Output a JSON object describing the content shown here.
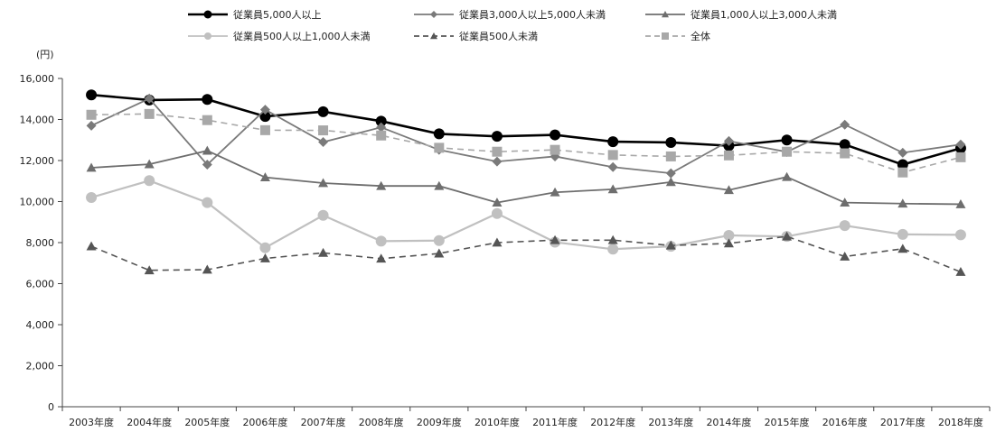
{
  "chart_data": {
    "type": "line",
    "unit_label": "(円)",
    "categories": [
      "2003年度",
      "2004年度",
      "2005年度",
      "2006年度",
      "2007年度",
      "2008年度",
      "2009年度",
      "2010年度",
      "2011年度",
      "2012年度",
      "2013年度",
      "2014年度",
      "2015年度",
      "2016年度",
      "2017年度",
      "2018年度"
    ],
    "ylim": [
      0,
      16000
    ],
    "yticks": [
      "0",
      "2,000",
      "4,000",
      "6,000",
      "8,000",
      "10,000",
      "12,000",
      "14,000",
      "16,000"
    ],
    "ytick_values": [
      0,
      2000,
      4000,
      6000,
      8000,
      10000,
      12000,
      14000,
      16000
    ],
    "grid": false,
    "legend_position": "top",
    "series": [
      {
        "name": "従業員5,000人以上",
        "color": "#000000",
        "marker": "circle",
        "dash": "solid",
        "values": [
          15200,
          14950,
          14980,
          14150,
          14380,
          13920,
          13300,
          13180,
          13250,
          12920,
          12880,
          12720,
          13000,
          12780,
          11800,
          12600
        ]
      },
      {
        "name": "従業員3,000人以上5,000人未満",
        "color": "#7a7a7a",
        "marker": "diamond",
        "dash": "solid",
        "values": [
          13700,
          15020,
          11800,
          14480,
          12900,
          13620,
          12520,
          11950,
          12200,
          11680,
          11380,
          12950,
          12420,
          13750,
          12380,
          12780
        ]
      },
      {
        "name": "従業員1,000人以上3,000人未満",
        "color": "#6e6e6e",
        "marker": "triangle",
        "dash": "solid",
        "values": [
          11650,
          11820,
          12480,
          11180,
          10900,
          10760,
          10760,
          9950,
          10450,
          10600,
          10950,
          10560,
          11200,
          9950,
          9900,
          9870
        ]
      },
      {
        "name": "従業員500人以上1,000人未満",
        "color": "#c0c0c0",
        "marker": "circle",
        "dash": "solid",
        "values": [
          10200,
          11020,
          9950,
          7750,
          9330,
          8070,
          8100,
          9420,
          8020,
          7680,
          7820,
          8350,
          8300,
          8830,
          8400,
          8380
        ]
      },
      {
        "name": "従業員500人未満",
        "color": "#555555",
        "marker": "triangle",
        "dash": "dashed",
        "values": [
          7820,
          6650,
          6680,
          7230,
          7500,
          7220,
          7470,
          8000,
          8120,
          8120,
          7860,
          7960,
          8300,
          7320,
          7700,
          6570
        ]
      },
      {
        "name": "全体",
        "color": "#a8a8a8",
        "marker": "square",
        "dash": "dashed",
        "values": [
          14230,
          14270,
          13970,
          13480,
          13470,
          13220,
          12620,
          12430,
          12520,
          12270,
          12200,
          12250,
          12430,
          12350,
          11420,
          12160
        ]
      }
    ]
  }
}
